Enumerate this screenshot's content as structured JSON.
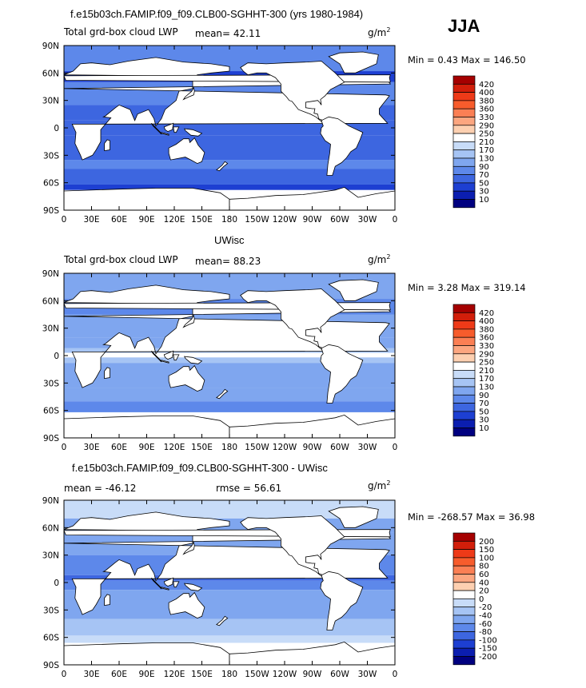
{
  "season": "JJA",
  "titles": {
    "panel1": "f.e15b03ch.FAMIP.f09_f09.CLB00-SGHHT-300 (yrs 1980-1984)",
    "panel2": "UWisc",
    "panel3": "f.e15b03ch.FAMIP.f09_f09.CLB00-SGHHT-300 - UWisc"
  },
  "panels": [
    {
      "variable": "Total grd-box cloud LWP",
      "stat_text": "mean=  42.11",
      "units": "g/m",
      "units_exp": "2",
      "minmax": "Min =    0.43  Max = 146.50",
      "legend_title": "",
      "levels": [
        "420",
        "400",
        "380",
        "360",
        "330",
        "290",
        "250",
        "210",
        "170",
        "130",
        "90",
        "70",
        "50",
        "30",
        "10"
      ],
      "colors": [
        "#a50000",
        "#d21e0a",
        "#ee3a18",
        "#f75c2c",
        "#fb7f54",
        "#fca680",
        "#fdd0b1",
        "#ffffff",
        "#c8dcf8",
        "#a6c4f4",
        "#7fa6ef",
        "#5d88ea",
        "#3d66e0",
        "#1d3fd2",
        "#0b1eb0",
        "#000080"
      ]
    },
    {
      "variable": "Total grd-box cloud LWP",
      "stat_text": "mean=  88.23",
      "units": "g/m",
      "units_exp": "2",
      "minmax": "Min =    3.28  Max = 319.14",
      "levels": [
        "420",
        "400",
        "380",
        "360",
        "330",
        "290",
        "250",
        "210",
        "170",
        "130",
        "90",
        "70",
        "50",
        "30",
        "10"
      ],
      "colors": [
        "#a50000",
        "#d21e0a",
        "#ee3a18",
        "#f75c2c",
        "#fb7f54",
        "#fca680",
        "#fdd0b1",
        "#ffffff",
        "#c8dcf8",
        "#a6c4f4",
        "#7fa6ef",
        "#5d88ea",
        "#3d66e0",
        "#1d3fd2",
        "#0b1eb0",
        "#000080"
      ]
    },
    {
      "variable": "mean = -46.12",
      "stat_text": "rmse =  56.61",
      "units": "g/m",
      "units_exp": "2",
      "minmax": "Min = -268.57  Max =  36.98",
      "levels": [
        "200",
        "150",
        "100",
        "80",
        "60",
        "40",
        "20",
        "0",
        "-20",
        "-40",
        "-60",
        "-80",
        "-100",
        "-150",
        "-200"
      ],
      "colors": [
        "#a50000",
        "#d21e0a",
        "#ee3a18",
        "#f75c2c",
        "#fb7f54",
        "#fca680",
        "#fdd0b1",
        "#ffffff",
        "#c8dcf8",
        "#a6c4f4",
        "#7fa6ef",
        "#5d88ea",
        "#3d66e0",
        "#1d3fd2",
        "#0b1eb0",
        "#000080"
      ]
    }
  ],
  "axis": {
    "lat_labels": [
      "90N",
      "60N",
      "30N",
      "0",
      "30S",
      "60S",
      "90S"
    ],
    "lon_labels": [
      "0",
      "30E",
      "60E",
      "90E",
      "120E",
      "150E",
      "180",
      "150W",
      "120W",
      "90W",
      "60W",
      "30W",
      "0"
    ]
  },
  "chart_data": [
    {
      "type": "heatmap",
      "title": "f.e15b03ch.FAMIP.f09_f09.CLB00-SGHHT-300 (yrs 1980-1984)",
      "variable": "Total grd-box cloud LWP",
      "units": "g/m2",
      "mean": 42.11,
      "min": 0.43,
      "max": 146.5,
      "xlim": [
        0,
        360
      ],
      "ylim": [
        -90,
        90
      ],
      "contour_levels": [
        10,
        30,
        50,
        70,
        90,
        130,
        170,
        210,
        250,
        290,
        330,
        360,
        380,
        400,
        420
      ]
    },
    {
      "type": "heatmap",
      "title": "UWisc",
      "variable": "Total grd-box cloud LWP",
      "units": "g/m2",
      "mean": 88.23,
      "min": 3.28,
      "max": 319.14,
      "xlim": [
        0,
        360
      ],
      "ylim": [
        -90,
        90
      ],
      "contour_levels": [
        10,
        30,
        50,
        70,
        90,
        130,
        170,
        210,
        250,
        290,
        330,
        360,
        380,
        400,
        420
      ]
    },
    {
      "type": "heatmap",
      "title": "f.e15b03ch.FAMIP.f09_f09.CLB00-SGHHT-300 - UWisc",
      "units": "g/m2",
      "mean": -46.12,
      "rmse": 56.61,
      "min": -268.57,
      "max": 36.98,
      "xlim": [
        0,
        360
      ],
      "ylim": [
        -90,
        90
      ],
      "contour_levels": [
        -200,
        -150,
        -100,
        -80,
        -60,
        -40,
        -20,
        0,
        20,
        40,
        60,
        80,
        100,
        150,
        200
      ]
    }
  ]
}
